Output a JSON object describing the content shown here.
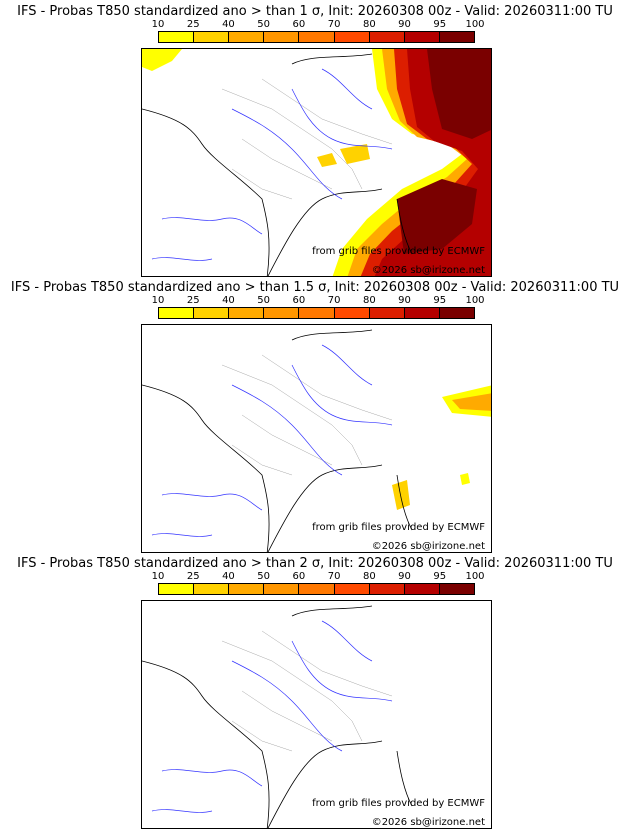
{
  "colorbar": {
    "ticks": [
      "10",
      "25",
      "40",
      "50",
      "60",
      "70",
      "80",
      "90",
      "95",
      "100"
    ],
    "colors": [
      "#ffff00",
      "#ffd200",
      "#ffaa00",
      "#ff9600",
      "#ff7800",
      "#ff4a00",
      "#dc1e00",
      "#b40000",
      "#7a0000"
    ]
  },
  "panels": [
    {
      "title": "IFS - Probas T850  standardized ano > than 1 σ, Init: 20260308 00z - Valid: 20260311:00 TU",
      "source": "from grib files provided by ECMWF",
      "copyright": "©2026 sb@irizone.net",
      "threshold_sigma": 1
    },
    {
      "title": "IFS - Probas T850  standardized ano > than 1.5 σ, Init: 20260308 00z - Valid: 20260311:00 TU",
      "source": "from grib files provided by ECMWF",
      "copyright": "©2026 sb@irizone.net",
      "threshold_sigma": 1.5
    },
    {
      "title": "IFS - Probas T850  standardized ano > than 2 σ, Init: 20260308 00z - Valid: 20260311:00 TU",
      "source": "from grib files provided by ECMWF",
      "copyright": "©2026 sb@irizone.net",
      "threshold_sigma": 2
    }
  ]
}
